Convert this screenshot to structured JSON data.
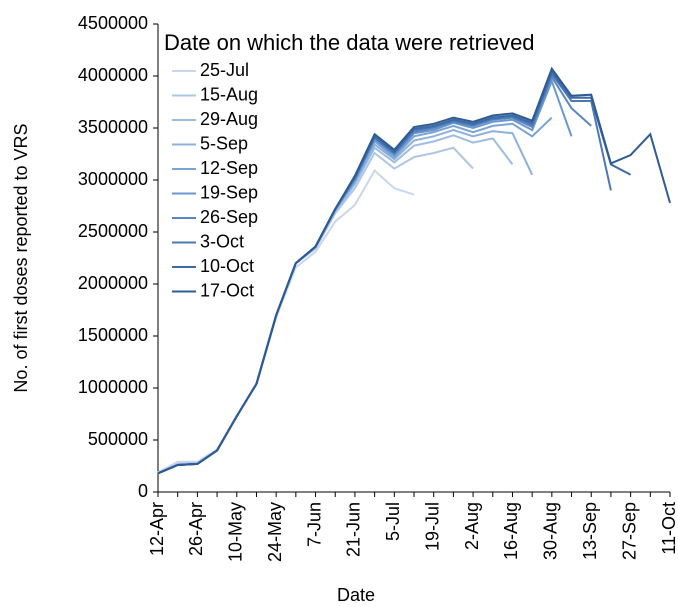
{
  "chart_data": {
    "type": "line",
    "y_label": "No. of first doses reported to VRS",
    "x_label": "Date",
    "legend_title": "Date on which the data were retrieved",
    "legend": "upper left",
    "grid": false,
    "categories": [
      "12-Apr",
      null,
      "26-Apr",
      null,
      "10-May",
      null,
      "24-May",
      null,
      "7-Jun",
      null,
      "21-Jun",
      null,
      "5-Jul",
      null,
      "19-Jul",
      null,
      "2-Aug",
      null,
      "16-Aug",
      null,
      "30-Aug",
      null,
      "13-Sep",
      null,
      "27-Sep",
      null,
      "11-Oct"
    ],
    "ylim": [
      0,
      4500000
    ],
    "yticks": [
      0,
      500000,
      1000000,
      1500000,
      2000000,
      2500000,
      3000000,
      3500000,
      4000000,
      4500000
    ],
    "series": [
      {
        "name": "25-Jul",
        "color": "#c9d7ea",
        "values": [
          190000,
          290000,
          290000,
          410000,
          730000,
          1040000,
          1680000,
          2160000,
          2310000,
          2600000,
          2760000,
          3090000,
          2920000,
          2860000,
          null,
          null,
          null,
          null,
          null,
          null,
          null,
          null,
          null,
          null,
          null,
          null,
          null
        ]
      },
      {
        "name": "15-Aug",
        "color": "#aec6e6",
        "values": [
          180000,
          270000,
          280000,
          400000,
          730000,
          1040000,
          1700000,
          2200000,
          2340000,
          2680000,
          2920000,
          3260000,
          3110000,
          3220000,
          3260000,
          3310000,
          3110000,
          null,
          null,
          null,
          null,
          null,
          null,
          null,
          null,
          null,
          null
        ]
      },
      {
        "name": "29-Aug",
        "color": "#9dbde2",
        "values": [
          180000,
          260000,
          270000,
          400000,
          730000,
          1040000,
          1700000,
          2200000,
          2350000,
          2700000,
          2960000,
          3310000,
          3170000,
          3330000,
          3370000,
          3430000,
          3360000,
          3400000,
          3150000,
          null,
          null,
          null,
          null,
          null,
          null,
          null,
          null
        ]
      },
      {
        "name": "5-Sep",
        "color": "#8db1dc",
        "values": [
          180000,
          260000,
          270000,
          400000,
          730000,
          1040000,
          1700000,
          2200000,
          2360000,
          2710000,
          2980000,
          3340000,
          3200000,
          3380000,
          3420000,
          3480000,
          3420000,
          3470000,
          3450000,
          3050000,
          null,
          null,
          null,
          null,
          null,
          null,
          null
        ]
      },
      {
        "name": "12-Sep",
        "color": "#7ba4d6",
        "values": [
          180000,
          260000,
          270000,
          400000,
          730000,
          1040000,
          1700000,
          2200000,
          2360000,
          2710000,
          2990000,
          3370000,
          3220000,
          3420000,
          3460000,
          3520000,
          3460000,
          3520000,
          3540000,
          3420000,
          3600000,
          null,
          null,
          null,
          null,
          null,
          null
        ]
      },
      {
        "name": "19-Sep",
        "color": "#6b97cf",
        "values": [
          180000,
          260000,
          270000,
          400000,
          730000,
          1040000,
          1700000,
          2200000,
          2360000,
          2720000,
          3000000,
          3390000,
          3240000,
          3450000,
          3480000,
          3550000,
          3500000,
          3560000,
          3580000,
          3480000,
          3950000,
          3420000,
          null,
          null,
          null,
          null,
          null
        ]
      },
      {
        "name": "26-Sep",
        "color": "#5b88c2",
        "values": [
          180000,
          260000,
          270000,
          400000,
          730000,
          1040000,
          1700000,
          2200000,
          2360000,
          2720000,
          3010000,
          3400000,
          3250000,
          3460000,
          3500000,
          3560000,
          3520000,
          3580000,
          3600000,
          3510000,
          3990000,
          3690000,
          3520000,
          null,
          null,
          null,
          null
        ]
      },
      {
        "name": "3-Oct",
        "color": "#4a79b4",
        "values": [
          180000,
          260000,
          270000,
          400000,
          730000,
          1040000,
          1700000,
          2200000,
          2360000,
          2720000,
          3020000,
          3410000,
          3260000,
          3480000,
          3510000,
          3570000,
          3530000,
          3590000,
          3610000,
          3530000,
          4020000,
          3760000,
          3760000,
          2900000,
          null,
          null,
          null
        ]
      },
      {
        "name": "10-Oct",
        "color": "#3d6aa5",
        "values": [
          180000,
          260000,
          270000,
          400000,
          730000,
          1040000,
          1700000,
          2200000,
          2360000,
          2720000,
          3030000,
          3420000,
          3270000,
          3490000,
          3520000,
          3580000,
          3540000,
          3600000,
          3620000,
          3550000,
          4040000,
          3790000,
          3790000,
          3150000,
          3050000,
          null,
          null
        ]
      },
      {
        "name": "17-Oct",
        "color": "#2f5b94",
        "values": [
          180000,
          260000,
          270000,
          400000,
          730000,
          1040000,
          1700000,
          2200000,
          2360000,
          2720000,
          3040000,
          3440000,
          3290000,
          3510000,
          3540000,
          3600000,
          3560000,
          3620000,
          3640000,
          3570000,
          4070000,
          3810000,
          3820000,
          3160000,
          3240000,
          3440000,
          2780000
        ]
      }
    ]
  }
}
